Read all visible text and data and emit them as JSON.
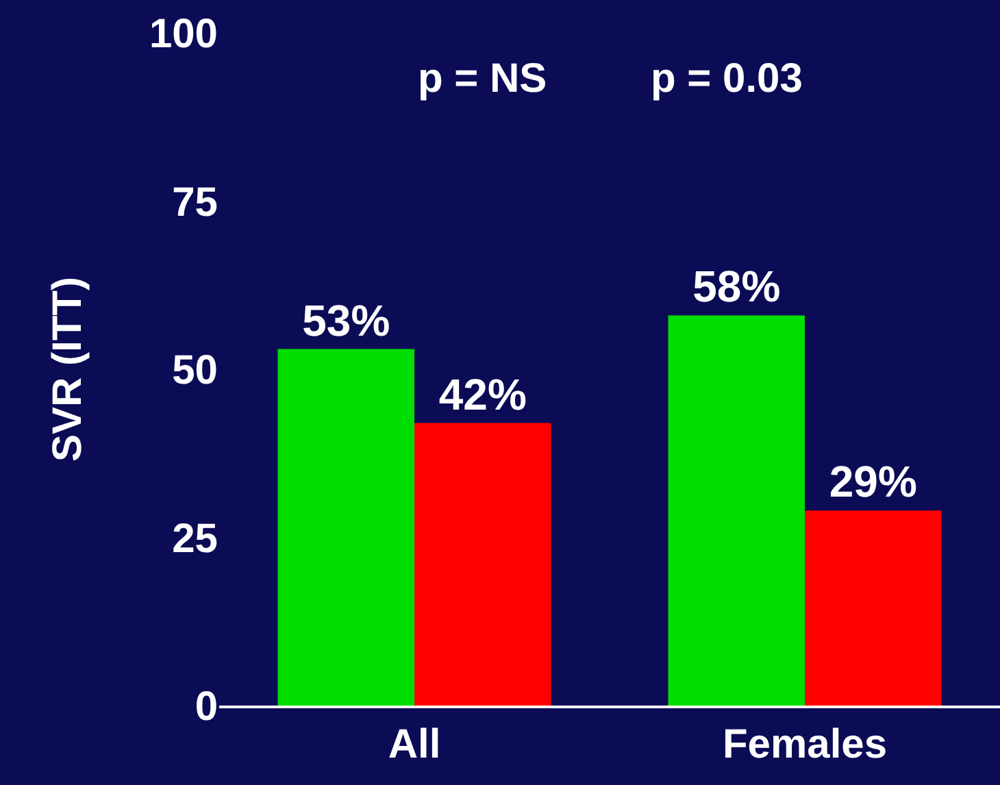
{
  "chart_data": {
    "type": "bar",
    "ylabel": "SVR (ITT)",
    "categories": [
      "All",
      "Females"
    ],
    "series": [
      {
        "color": "#00dd00",
        "values": [
          53,
          58
        ],
        "value_labels": [
          "53%",
          "58%"
        ]
      },
      {
        "color": "#ff0000",
        "values": [
          42,
          29
        ],
        "value_labels": [
          "42%",
          "29%"
        ]
      }
    ],
    "ylim": [
      0,
      100
    ],
    "yticks": [
      0,
      25,
      50,
      75,
      100
    ],
    "grid": false,
    "annotations": [
      "p = NS",
      "p = 0.03"
    ]
  }
}
